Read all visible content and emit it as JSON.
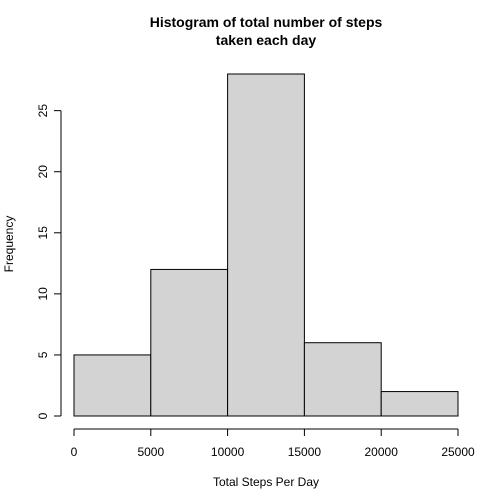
{
  "chart_data": {
    "type": "histogram",
    "title": [
      "Histogram of total number of steps",
      "taken each day"
    ],
    "xlabel": "Total Steps Per Day",
    "ylabel": "Frequency",
    "bins": [
      0,
      5000,
      10000,
      15000,
      20000,
      25000
    ],
    "values": [
      5,
      12,
      28,
      6,
      2
    ],
    "color": "#d3d3d3",
    "xlim": [
      0,
      25000
    ],
    "xticks": [
      0,
      5000,
      10000,
      15000,
      20000,
      25000
    ],
    "ylim": [
      0,
      28
    ],
    "yticks": [
      0,
      5,
      10,
      15,
      20,
      25
    ]
  }
}
